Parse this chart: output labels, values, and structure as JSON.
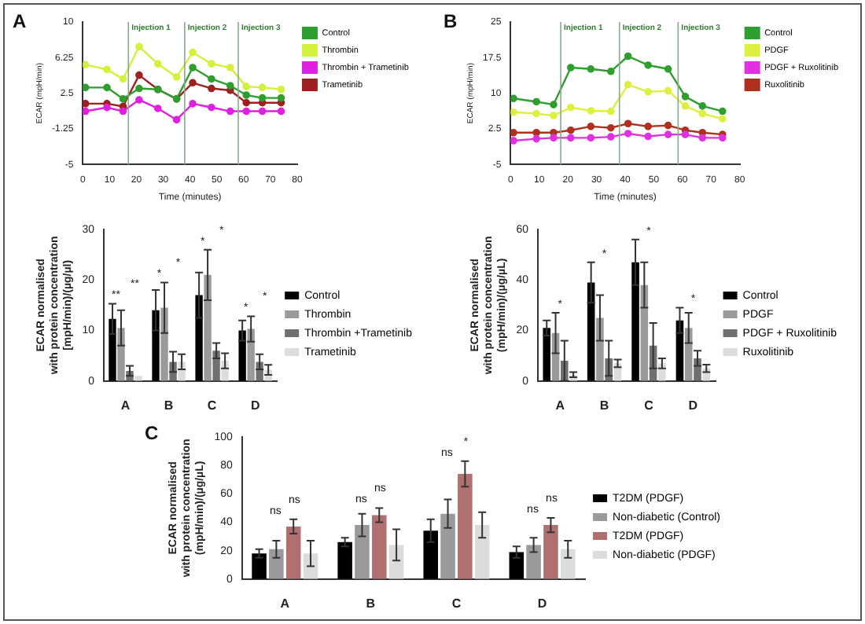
{
  "chart_data": [
    {
      "type": "line",
      "title": "A",
      "xlabel": "Time (minutes)",
      "ylabel": "ECAR (mpH/min)",
      "xlim": [
        0,
        80
      ],
      "xticks": [
        0,
        10,
        20,
        30,
        40,
        50,
        60,
        70,
        80
      ],
      "ylim": [
        -5,
        10
      ],
      "yticks": [
        -5,
        -1.25,
        2.5,
        6.25,
        10
      ],
      "grid": false,
      "legend": "top right",
      "marker": "circle",
      "ref_lines": [
        {
          "axis": "x",
          "value": 17,
          "label": "Injection 1",
          "color": "#8aa88a"
        },
        {
          "axis": "x",
          "value": 38,
          "label": "Injection 2",
          "color": "#8aa88a"
        },
        {
          "axis": "x",
          "value": 58,
          "label": "Injection 3",
          "color": "#8aa88a"
        }
      ],
      "x": [
        1,
        9,
        15,
        21,
        28,
        35,
        41,
        48,
        55,
        61,
        67,
        74
      ],
      "series": [
        {
          "name": "Control",
          "color": "#2e9e2e",
          "values": [
            3.1,
            3.1,
            1.9,
            3,
            2.9,
            1.9,
            5.2,
            4,
            3.3,
            2.3,
            2,
            2
          ]
        },
        {
          "name": "Thrombin",
          "color": "#d4f03c",
          "values": [
            5.5,
            5,
            4,
            7.4,
            5.6,
            4.2,
            6.8,
            5.6,
            5.2,
            3.2,
            3.1,
            2.9
          ]
        },
        {
          "name": "Thrombin + Trametinib",
          "color": "#e020e0",
          "values": [
            0.6,
            1,
            0.6,
            1.8,
            0.9,
            -0.3,
            1.4,
            1,
            0.6,
            0.6,
            0.6,
            0.6
          ]
        },
        {
          "name": "Trametinib",
          "color": "#a02020",
          "values": [
            1.4,
            1.4,
            1.1,
            4.4,
            2.9,
            1.9,
            3.6,
            3,
            2.8,
            1.5,
            1.5,
            1.5
          ]
        }
      ]
    },
    {
      "type": "line",
      "title": "B",
      "xlabel": "Time (minutes)",
      "ylabel": "ECAR (mpH/min)",
      "xlim": [
        0,
        80
      ],
      "xticks": [
        0,
        10,
        20,
        30,
        40,
        50,
        60,
        70,
        80
      ],
      "ylim": [
        -5,
        25
      ],
      "yticks": [
        -5,
        2.5,
        10,
        17.5,
        25
      ],
      "grid": false,
      "legend": "top right",
      "marker": "circle",
      "ref_lines": [
        {
          "axis": "x",
          "value": 17.5,
          "label": "Injection 1",
          "color": "#8aa88a"
        },
        {
          "axis": "x",
          "value": 38,
          "label": "Injection 2",
          "color": "#8aa88a"
        },
        {
          "axis": "x",
          "value": 58.5,
          "label": "Injection 3",
          "color": "#8aa88a"
        }
      ],
      "x": [
        1,
        9,
        15,
        21,
        28,
        35,
        41,
        48,
        55,
        61,
        67,
        74
      ],
      "series": [
        {
          "name": "Control",
          "color": "#2e9e2e",
          "values": [
            8.9,
            8.2,
            7.6,
            15.4,
            15.1,
            14.6,
            17.8,
            15.9,
            15.1,
            9.3,
            7.3,
            6.2
          ]
        },
        {
          "name": "PDGF",
          "color": "#ddf040",
          "values": [
            6,
            5.7,
            5.3,
            7,
            6.3,
            6.2,
            11.8,
            10.3,
            10.5,
            7.3,
            5.7,
            4.6
          ]
        },
        {
          "name": "PDGF + Ruxolitinib",
          "color": "#e030e0",
          "values": [
            0,
            0.4,
            0.6,
            0.6,
            0.6,
            0.8,
            1.5,
            0.9,
            1.3,
            1.3,
            0.6,
            0.6
          ]
        },
        {
          "name": "Ruxolitinib",
          "color": "#b03020",
          "values": [
            1.7,
            1.7,
            1.7,
            2.2,
            3,
            2.7,
            3.6,
            3,
            3.2,
            2.2,
            1.7,
            1.3
          ]
        }
      ]
    },
    {
      "type": "bar",
      "ylabel": "ECAR normalised\nwith protein concentration\n[mpH/min)/(µg/µl)",
      "categories": [
        "A",
        "B",
        "C",
        "D"
      ],
      "ylim": [
        0,
        30
      ],
      "yticks": [
        0,
        10,
        20,
        30
      ],
      "grid": false,
      "legend": "right",
      "annotations": [
        "**",
        "**",
        "*",
        "*",
        "*",
        "*",
        "*",
        "*"
      ],
      "series": [
        {
          "name": "Control",
          "color": "#000000",
          "values": [
            12.3,
            14,
            17,
            10
          ],
          "errors": [
            3,
            4,
            4.5,
            2
          ]
        },
        {
          "name": "Thrombin",
          "color": "#9a9a9a",
          "values": [
            10.5,
            14.5,
            21,
            10.3
          ],
          "errors": [
            3.5,
            5,
            5,
            2.5
          ]
        },
        {
          "name": "Thrombin +Trametinib",
          "color": "#707070",
          "values": [
            2,
            3.8,
            6,
            3.8
          ],
          "errors": [
            1,
            2,
            1.5,
            1.5
          ]
        },
        {
          "name": "Trametinib",
          "color": "#dcdcdc",
          "values": [
            1,
            3.8,
            4,
            2.2
          ],
          "errors": [
            null,
            1.5,
            1.5,
            1
          ]
        }
      ]
    },
    {
      "type": "bar",
      "ylabel": "ECAR normalised\nwith protein concentration\n(mpH/min)/(µg/µL)",
      "categories": [
        "A",
        "B",
        "C",
        "D"
      ],
      "ylim": [
        0,
        60
      ],
      "yticks": [
        0,
        20,
        40,
        60
      ],
      "grid": false,
      "legend": "right",
      "annotations": [
        "*",
        "*",
        "*",
        "*"
      ],
      "series": [
        {
          "name": "Control",
          "color": "#000000",
          "values": [
            21,
            39,
            47,
            24
          ],
          "errors": [
            3,
            8,
            9,
            5
          ]
        },
        {
          "name": "PDGF",
          "color": "#9a9a9a",
          "values": [
            19,
            25,
            38,
            21
          ],
          "errors": [
            8,
            9,
            9,
            6
          ]
        },
        {
          "name": "PDGF + Ruxolitinib",
          "color": "#707070",
          "values": [
            8,
            9,
            14,
            9
          ],
          "errors": [
            8,
            7,
            9,
            3
          ]
        },
        {
          "name": "Ruxolitinib",
          "color": "#dcdcdc",
          "values": [
            2.5,
            7,
            7,
            5
          ],
          "errors": [
            1,
            1.5,
            2,
            1.5
          ]
        }
      ]
    },
    {
      "type": "bar",
      "title": "C",
      "ylabel": "ECAR normalised\nwith protein concentration\n(mpH/min)/(µg/µL)",
      "categories": [
        "A",
        "B",
        "C",
        "D"
      ],
      "ylim": [
        0,
        100
      ],
      "yticks": [
        0,
        20,
        40,
        60,
        80,
        100
      ],
      "grid": false,
      "legend": "right",
      "annotations": [
        "ns",
        "ns",
        "ns",
        "ns",
        "ns",
        "*",
        "ns",
        "ns"
      ],
      "series": [
        {
          "name": "T2DM (PDGF)",
          "color": "#000000",
          "values": [
            18,
            26,
            34,
            19
          ],
          "errors": [
            3,
            3,
            8,
            4
          ]
        },
        {
          "name": "Non-diabetic (Control)",
          "color": "#9a9a9a",
          "values": [
            21,
            38,
            46,
            24
          ],
          "errors": [
            6,
            8,
            10,
            5
          ]
        },
        {
          "name": "T2DM (PDGF)",
          "color": "#b07070",
          "values": [
            37,
            45,
            74,
            38
          ],
          "errors": [
            5,
            5,
            9,
            5
          ]
        },
        {
          "name": "Non-diabetic (PDGF)",
          "color": "#dcdcdc",
          "values": [
            18,
            24,
            38,
            21
          ],
          "errors": [
            9,
            11,
            9,
            6
          ]
        }
      ]
    }
  ]
}
